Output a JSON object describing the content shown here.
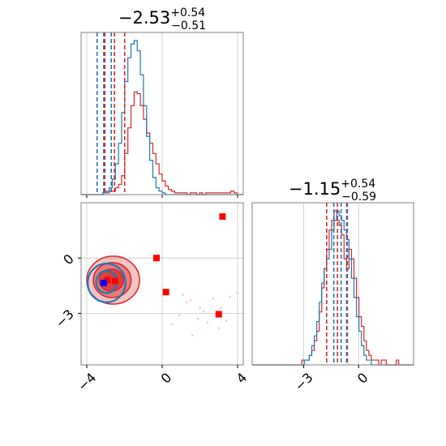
{
  "chart_data": {
    "type": "corner",
    "parameters": [
      {
        "title": {
          "value": "−2.53",
          "sup": "+0.54",
          "sub": "−0.51"
        },
        "range": [
          -4.3,
          4.3
        ],
        "ticks": [
          -4,
          0,
          4
        ],
        "tick_labels": [
          "−4",
          "0",
          "4"
        ],
        "quantiles_red": [
          -3.04,
          -2.53,
          -1.99
        ],
        "quantiles_blue": [
          -3.45,
          -3.1,
          -2.7
        ]
      },
      {
        "title": {
          "value": "−1.15",
          "sup": "+0.54",
          "sub": "−0.59"
        },
        "range": [
          -5.8,
          3.0
        ],
        "ticks": [
          -3,
          0
        ],
        "tick_labels": [
          "−3",
          "0"
        ],
        "quantiles_red": [
          -1.74,
          -1.15,
          -0.61
        ],
        "quantiles_blue": [
          -1.35,
          -0.95,
          -0.65
        ]
      }
    ],
    "hist_x": {
      "edges": [
        -4.3,
        4.3
      ],
      "red": [
        0,
        0,
        0,
        0,
        0,
        0,
        0,
        1,
        1,
        2,
        2,
        4,
        6,
        11,
        24,
        39,
        52,
        60,
        59,
        52,
        44,
        36,
        30,
        24,
        18,
        12,
        8,
        5,
        3,
        2,
        1,
        1,
        1,
        1,
        0,
        1,
        1,
        0,
        1,
        0,
        1,
        1,
        1,
        1,
        1,
        1,
        1,
        1,
        2,
        1,
        0,
        0
      ],
      "blue": [
        0,
        0,
        0,
        0,
        0,
        0,
        0,
        1,
        2,
        4,
        9,
        18,
        30,
        48,
        66,
        80,
        88,
        90,
        84,
        70,
        52,
        34,
        20,
        10,
        4,
        2,
        1,
        0,
        0,
        0,
        0,
        0,
        0,
        0,
        0,
        0,
        0,
        0,
        0,
        0,
        0,
        0,
        0,
        0,
        0,
        0,
        0,
        0,
        0,
        0,
        0,
        0
      ]
    },
    "hist_y": {
      "edges": [
        -5.8,
        3.0
      ],
      "red": [
        0,
        0,
        0,
        0,
        0,
        0,
        0,
        0,
        0,
        0,
        0,
        0,
        0,
        0,
        0,
        0,
        0,
        0,
        0,
        0,
        1,
        1,
        1,
        2,
        3,
        5,
        7,
        11,
        16,
        20,
        24,
        28,
        30,
        32,
        30,
        29,
        27,
        22,
        20,
        24,
        22,
        18,
        14,
        10,
        8,
        5,
        3,
        2,
        1,
        1,
        1,
        0,
        1,
        1,
        0,
        0,
        0,
        0,
        1,
        0,
        0,
        0,
        0,
        0,
        0
      ],
      "blue": [
        0,
        0,
        0,
        0,
        0,
        0,
        0,
        0,
        0,
        0,
        0,
        0,
        0,
        0,
        0,
        0,
        0,
        0,
        0,
        0,
        0,
        1,
        1,
        2,
        4,
        6,
        9,
        13,
        17,
        20,
        22,
        24,
        28,
        30,
        32,
        31,
        30,
        28,
        26,
        22,
        18,
        14,
        10,
        7,
        4,
        2,
        1,
        1,
        0,
        0,
        0,
        0,
        0,
        0,
        0,
        0,
        0,
        0,
        0,
        0,
        0,
        0,
        0,
        0,
        0
      ]
    },
    "scatter_red_markers": [
      {
        "x": 3.2,
        "y": 2.25
      },
      {
        "x": -0.3,
        "y": 0.0
      },
      {
        "x": 0.2,
        "y": -1.85
      },
      {
        "x": 3.0,
        "y": -3.05
      },
      {
        "x": -2.5,
        "y": -1.25
      },
      {
        "x": -2.9,
        "y": -1.2
      }
    ],
    "scatter_blue_markers": [
      {
        "x": -3.1,
        "y": -1.35
      }
    ],
    "faint_points": [
      {
        "x": 1.5,
        "y": -2.3
      },
      {
        "x": 2.0,
        "y": -2.7
      },
      {
        "x": 2.4,
        "y": -3.5
      },
      {
        "x": 3.1,
        "y": -2.7
      },
      {
        "x": 1.9,
        "y": -3.3
      },
      {
        "x": 0.9,
        "y": -3.1
      },
      {
        "x": 1.3,
        "y": -2.4
      },
      {
        "x": 4.0,
        "y": -1.9
      },
      {
        "x": 3.6,
        "y": -2.1
      },
      {
        "x": 1.6,
        "y": -4.2
      },
      {
        "x": 2.7,
        "y": -2.2
      },
      {
        "x": 0.5,
        "y": -3.6
      },
      {
        "x": 3.0,
        "y": -3.8
      },
      {
        "x": 1.1,
        "y": -2.0
      },
      {
        "x": 2.2,
        "y": -2.9
      },
      {
        "x": 3.4,
        "y": -3.4
      }
    ],
    "contours_red": [
      {
        "cx": -2.6,
        "cy": -1.2,
        "rx": 1.4,
        "ry": 1.3,
        "opacity": 0.28
      },
      {
        "cx": -2.65,
        "cy": -1.2,
        "rx": 1.0,
        "ry": 0.95,
        "opacity": 0.45
      },
      {
        "cx": -2.7,
        "cy": -1.2,
        "rx": 0.65,
        "ry": 0.6,
        "opacity": 0.7
      }
    ],
    "contours_blue": [
      {
        "cx": -2.95,
        "cy": -1.35,
        "rx": 1.0,
        "ry": 1.05
      },
      {
        "cx": -2.95,
        "cy": -1.3,
        "rx": 0.55,
        "ry": 0.6
      }
    ],
    "colors": {
      "red": "#d62728",
      "blue": "#1f77b4",
      "marker_red": "#ff0000",
      "marker_blue": "#0000ff"
    },
    "grid": true
  }
}
